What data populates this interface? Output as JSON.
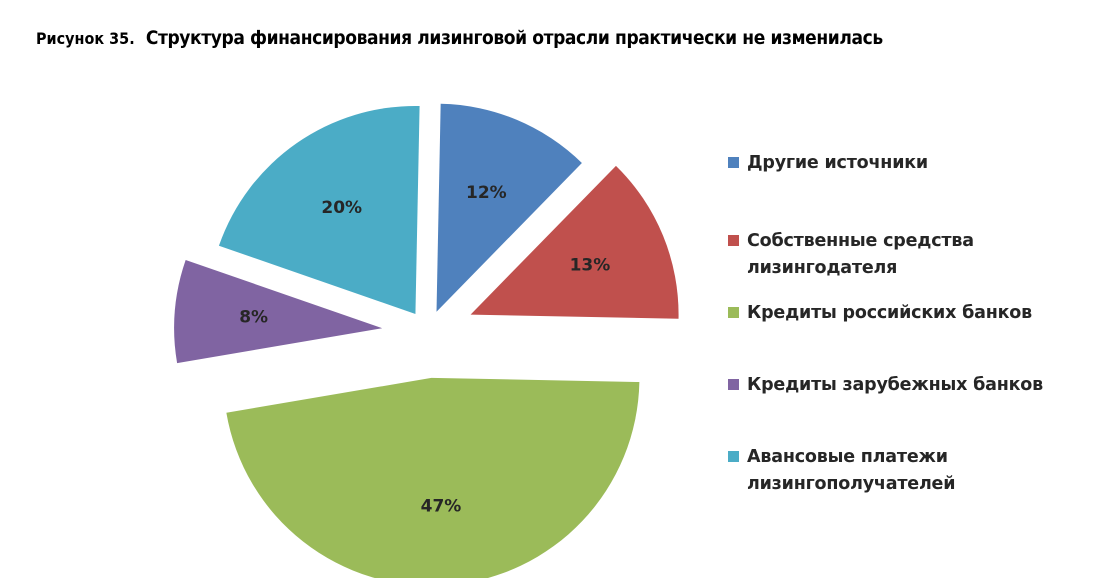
{
  "figure": {
    "label": "Рисунок 35.",
    "title": "Структура финансирования лизинговой отрасли практически не изменилась"
  },
  "chart_data": {
    "type": "pie",
    "exploded": true,
    "legend_position": "right",
    "series": [
      {
        "name": "Другие источники",
        "value": 12,
        "label": "12%",
        "color": "#4f81bd"
      },
      {
        "name": "Собственные средства лизингодателя",
        "value": 13,
        "label": "13%",
        "color": "#c0504d"
      },
      {
        "name": "Кредиты российских банков",
        "value": 47,
        "label": "47%",
        "color": "#9bbb59"
      },
      {
        "name": "Кредиты зарубежных банков",
        "value": 8,
        "label": "8%",
        "color": "#8064a2"
      },
      {
        "name": "Авансовые платежи лизингополучателей",
        "value": 20,
        "label": "20%",
        "color": "#4bacc6"
      }
    ]
  }
}
